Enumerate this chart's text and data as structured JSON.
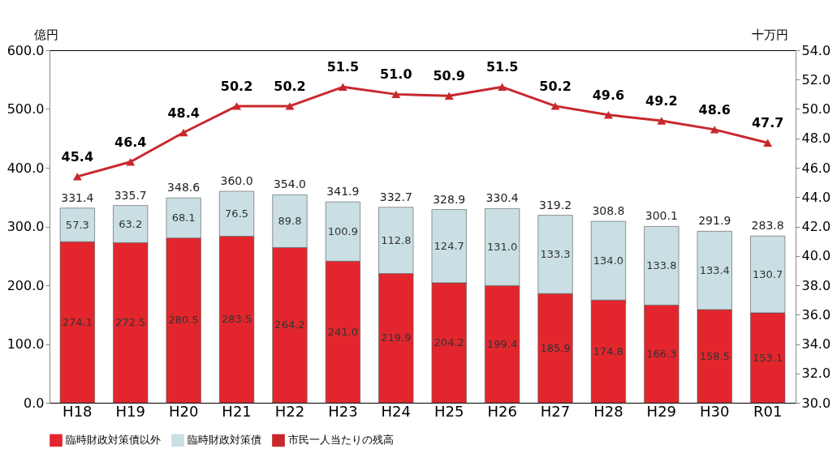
{
  "chart_data": {
    "type": "bar",
    "stacked": true,
    "ylabel": "億円",
    "y2label": "十万円",
    "categories": [
      "H18",
      "H19",
      "H20",
      "H21",
      "H22",
      "H23",
      "H24",
      "H25",
      "H26",
      "H27",
      "H28",
      "H29",
      "H30",
      "R01"
    ],
    "series": [
      {
        "name": "臨時財政対策債以外",
        "color": "#e3262d",
        "values": [
          274.1,
          272.5,
          280.5,
          283.5,
          264.2,
          241.0,
          219.9,
          204.2,
          199.4,
          185.9,
          174.8,
          166.3,
          158.5,
          153.1
        ],
        "value_labels": [
          "274.1",
          "272.5",
          "280.5",
          "283.5",
          "264.2",
          "241.0",
          "219.9",
          "204.2",
          "199.4",
          "185.9",
          "174.8",
          "166.3",
          "158.5",
          "153.1"
        ]
      },
      {
        "name": "臨時財政対策債",
        "color": "#c9dfe3",
        "values": [
          57.3,
          63.2,
          68.1,
          76.5,
          89.8,
          100.9,
          112.8,
          124.7,
          131.0,
          133.3,
          134.0,
          133.8,
          133.4,
          130.7
        ],
        "value_labels": [
          "57.3",
          "63.2",
          "68.1",
          "76.5",
          "89.8",
          "100.9",
          "112.8",
          "124.7",
          "131.0",
          "133.3",
          "134.0",
          "133.8",
          "133.4",
          "130.7"
        ]
      },
      {
        "name": "市民一人当たりの残高",
        "type": "line",
        "axis": "y2",
        "color": "#c8282d",
        "marker": "triangle",
        "values": [
          45.4,
          46.4,
          48.4,
          50.2,
          50.2,
          51.5,
          51.0,
          50.9,
          51.5,
          50.2,
          49.6,
          49.2,
          48.6,
          47.7
        ],
        "value_labels": [
          "45.4",
          "46.4",
          "48.4",
          "50.2",
          "50.2",
          "51.5",
          "51.0",
          "50.9",
          "51.5",
          "50.2",
          "49.6",
          "49.2",
          "48.6",
          "47.7"
        ]
      }
    ],
    "totals": [
      "331.4",
      "335.7",
      "348.6",
      "360.0",
      "354.0",
      "341.9",
      "332.7",
      "328.9",
      "330.4",
      "319.2",
      "308.8",
      "300.1",
      "291.9",
      "283.8"
    ],
    "ylim": [
      0,
      600
    ],
    "yticks": [
      {
        "value": 0,
        "label": "0.0"
      },
      {
        "value": 100,
        "label": "100.0"
      },
      {
        "value": 200,
        "label": "200.0"
      },
      {
        "value": 300,
        "label": "300.0"
      },
      {
        "value": 400,
        "label": "400.0"
      },
      {
        "value": 500,
        "label": "500.0"
      },
      {
        "value": 600,
        "label": "600.0"
      }
    ],
    "y2lim": [
      30,
      54
    ],
    "y2ticks": [
      {
        "value": 30,
        "label": "30.0"
      },
      {
        "value": 32,
        "label": "32.0"
      },
      {
        "value": 34,
        "label": "34.0"
      },
      {
        "value": 36,
        "label": "36.0"
      },
      {
        "value": 38,
        "label": "38.0"
      },
      {
        "value": 40,
        "label": "40.0"
      },
      {
        "value": 42,
        "label": "42.0"
      },
      {
        "value": 44,
        "label": "44.0"
      },
      {
        "value": 46,
        "label": "46.0"
      },
      {
        "value": 48,
        "label": "48.0"
      },
      {
        "value": 50,
        "label": "50.0"
      },
      {
        "value": 52,
        "label": "52.0"
      },
      {
        "value": 54,
        "label": "54.0"
      }
    ],
    "grid": false,
    "legend": "bottom"
  }
}
